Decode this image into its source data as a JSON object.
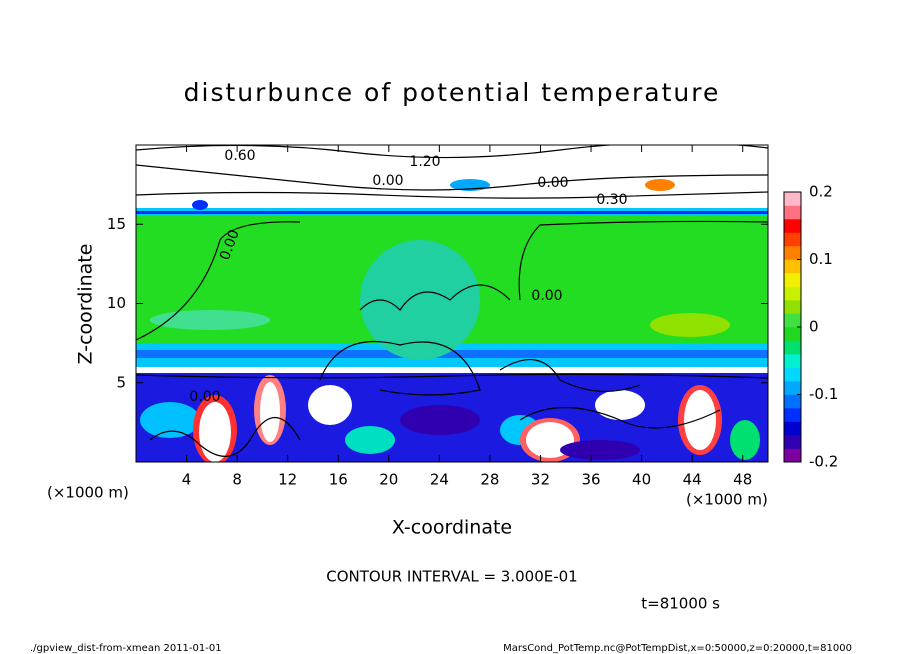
{
  "chart_data": {
    "type": "contour",
    "title": "disturbunce of potential temperature",
    "xlabel": "X-coordinate",
    "ylabel": "Z-coordinate",
    "x_unit_left": "(×1000 m)",
    "x_unit_right": "(×1000 m)",
    "xlim": [
      0,
      50
    ],
    "xticks": [
      4,
      8,
      12,
      16,
      20,
      24,
      28,
      32,
      36,
      40,
      44,
      48
    ],
    "ylim": [
      0,
      20
    ],
    "yticks": [
      5,
      10,
      15
    ],
    "colorbar": {
      "lim": [
        -0.2,
        0.2
      ],
      "ticks": [
        -0.2,
        -0.1,
        0,
        0.1,
        0.2
      ],
      "colors": [
        "#7f00a0",
        "#3000b0",
        "#0000d0",
        "#0030ff",
        "#0070ff",
        "#00a8ff",
        "#00d8ff",
        "#00f0d0",
        "#00e070",
        "#20d820",
        "#40e040",
        "#90e000",
        "#c8f000",
        "#f0f000",
        "#ffc000",
        "#ff8000",
        "#ff4000",
        "#ff0000",
        "#ff7080",
        "#ffb8c8"
      ]
    },
    "contour_labels": [
      "0.60",
      "1.20",
      "0.00",
      "0.00",
      "0.30",
      "0.00",
      "0.00",
      "0.00"
    ],
    "contour_interval": "CONTOUR INTERVAL = 3.000E-01",
    "time": "t=81000 s",
    "footer_left": "./gpview_dist-from-xmean  2011-01-01",
    "footer_right": "MarsCond_PotTemp.nc@PotTempDist,x=0:50000,z=0:20000,t=81000"
  }
}
